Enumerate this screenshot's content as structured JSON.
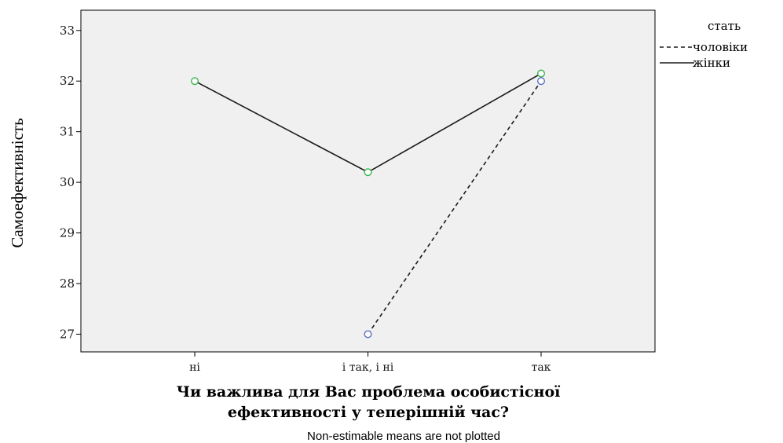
{
  "chart_data": {
    "type": "line",
    "title": "",
    "xlabel": [
      "Чи важлива для Вас проблема особистісної",
      "ефективності у теперішній час?"
    ],
    "ylabel": "Самоефективність",
    "categories": [
      "ні",
      "і так, і ні",
      "так"
    ],
    "ylim": [
      26.65,
      33.4
    ],
    "yticks": [
      27,
      28,
      29,
      30,
      31,
      32,
      33
    ],
    "grid": false,
    "legend": {
      "title": "стать",
      "placement": "right"
    },
    "series": [
      {
        "name": "чоловіки",
        "values": [
          null,
          27.0,
          32.0
        ],
        "line_style": "dashed",
        "marker_color": "#5a6fc8"
      },
      {
        "name": "жінки",
        "values": [
          32.0,
          30.2,
          32.15
        ],
        "line_style": "solid",
        "marker_color": "#39b54a"
      }
    ],
    "note": "Non-estimable means are not plotted",
    "colors": {
      "plot_background": "#f0f0f0",
      "line": "#1a1a1a"
    }
  }
}
